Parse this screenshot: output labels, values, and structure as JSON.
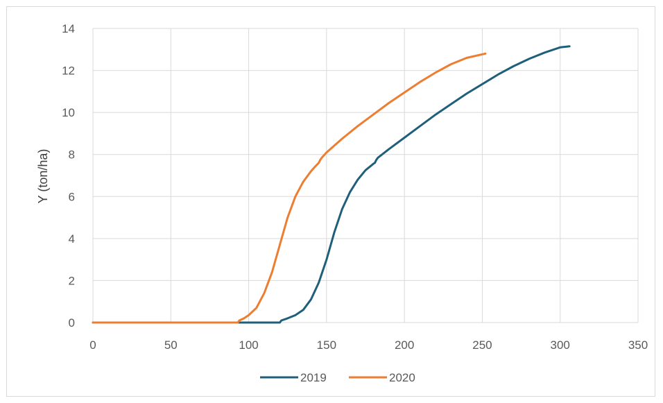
{
  "chart_data": {
    "type": "line",
    "title": "",
    "xlabel": "",
    "ylabel": "Y  (ton/ha)",
    "xlim": [
      0,
      350
    ],
    "ylim": [
      0,
      14
    ],
    "x_ticks": [
      0,
      50,
      100,
      150,
      200,
      250,
      300,
      350
    ],
    "y_ticks": [
      0,
      2,
      4,
      6,
      8,
      10,
      12,
      14
    ],
    "grid": true,
    "legend_position": "bottom",
    "series": [
      {
        "name": "2019",
        "color": "#1f5f7a",
        "x": [
          0,
          50,
          100,
          120,
          121,
          125,
          130,
          135,
          140,
          145,
          150,
          155,
          160,
          165,
          170,
          175,
          180,
          181,
          182,
          183,
          190,
          200,
          210,
          220,
          230,
          240,
          250,
          260,
          270,
          280,
          290,
          300,
          306
        ],
        "y": [
          0,
          0,
          0,
          0,
          0.1,
          0.2,
          0.35,
          0.6,
          1.1,
          1.9,
          3.0,
          4.3,
          5.4,
          6.2,
          6.8,
          7.25,
          7.55,
          7.6,
          7.75,
          7.85,
          8.25,
          8.8,
          9.35,
          9.9,
          10.4,
          10.9,
          11.35,
          11.8,
          12.2,
          12.55,
          12.85,
          13.1,
          13.15
        ]
      },
      {
        "name": "2020",
        "color": "#ed7d31",
        "x": [
          0,
          50,
          93,
          94,
          97,
          100,
          105,
          110,
          115,
          120,
          125,
          130,
          135,
          140,
          143,
          145,
          146,
          147,
          150,
          160,
          170,
          180,
          190,
          200,
          210,
          220,
          230,
          240,
          252
        ],
        "y": [
          0,
          0,
          0,
          0.1,
          0.2,
          0.35,
          0.7,
          1.4,
          2.4,
          3.7,
          5.0,
          6.0,
          6.7,
          7.2,
          7.45,
          7.6,
          7.75,
          7.85,
          8.1,
          8.75,
          9.35,
          9.9,
          10.45,
          10.95,
          11.45,
          11.9,
          12.3,
          12.6,
          12.8
        ]
      }
    ]
  }
}
